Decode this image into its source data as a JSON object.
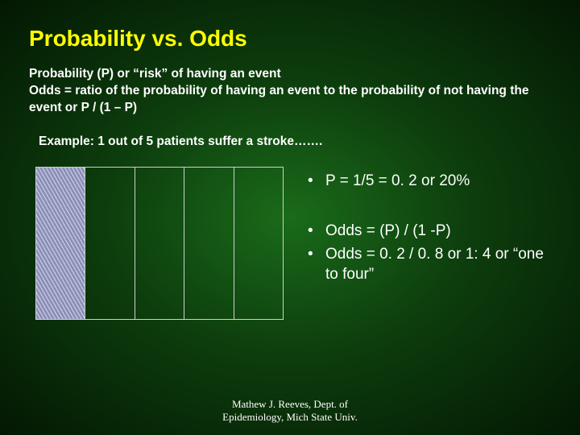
{
  "title": "Probability vs. Odds",
  "definitions": {
    "line1": "Probability (P) or “risk” of having an event",
    "line2": "Odds =  ratio of the probability of having an event to the probability of not having the event or  P / (1 – P)"
  },
  "example": "Example: 1 out of 5 patients suffer a stroke…….",
  "bars": {
    "count": 5,
    "hatched_index": 0,
    "hatched_fill": "#8a8fb8",
    "border_color": "#cfcfcf"
  },
  "bullets": {
    "b1": "P = 1/5 = 0. 2 or 20%",
    "b2": "Odds = (P) / (1 -P)",
    "b3": "Odds = 0. 2 / 0. 8 or 1: 4 or “one to four”"
  },
  "footer": {
    "line1": "Mathew J. Reeves, Dept. of",
    "line2": "Epidemiology, Mich State Univ."
  },
  "style": {
    "title_color": "#ffff00",
    "text_color": "#ffffff",
    "bg_center": "#1a6b1a",
    "bg_edge": "#031803",
    "title_fontsize": 28,
    "body_fontsize": 15.5,
    "bullet_fontsize": 19,
    "footer_fontsize": 13
  }
}
